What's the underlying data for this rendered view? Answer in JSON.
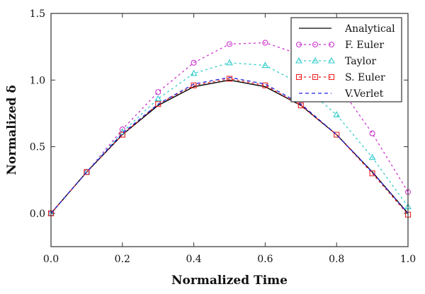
{
  "chart_data": {
    "type": "line",
    "title": "",
    "xlabel": "Normalized Time",
    "ylabel": "Normalized δ",
    "xlim": [
      0,
      1
    ],
    "ylim": [
      -0.25,
      1.5
    ],
    "xticks": [
      0.0,
      0.2,
      0.4,
      0.6,
      0.8,
      1.0
    ],
    "xtick_labels": [
      "0.0",
      "0.2",
      "0.4",
      "0.6",
      "0.8",
      "1.0"
    ],
    "yticks": [
      0.0,
      0.5,
      1.0,
      1.5
    ],
    "ytick_labels": [
      "0.0",
      "0.5",
      "1.0",
      "1.5"
    ],
    "grid": false,
    "legend_position": "top-right",
    "x": [
      0,
      0.1,
      0.2,
      0.3,
      0.4,
      0.5,
      0.6,
      0.7,
      0.8,
      0.9,
      1.0
    ],
    "series": [
      {
        "name": "Analytical",
        "color": "#000000",
        "style": "solid",
        "marker": "none",
        "values": [
          0,
          0.31,
          0.59,
          0.81,
          0.95,
          1.0,
          0.95,
          0.81,
          0.59,
          0.31,
          0
        ]
      },
      {
        "name": "F. Euler",
        "color": "#cc33cc",
        "style": "dashed",
        "marker": "circle",
        "values": [
          0,
          0.31,
          0.63,
          0.91,
          1.13,
          1.27,
          1.28,
          1.19,
          0.98,
          0.6,
          0.16
        ]
      },
      {
        "name": "Taylor",
        "color": "#33cccc",
        "style": "dashed",
        "marker": "triangle",
        "values": [
          0,
          0.31,
          0.61,
          0.86,
          1.05,
          1.13,
          1.11,
          0.97,
          0.74,
          0.42,
          0.05
        ]
      },
      {
        "name": "S. Euler",
        "color": "#ee2222",
        "style": "dashed",
        "marker": "square",
        "values": [
          0,
          0.31,
          0.59,
          0.82,
          0.96,
          1.01,
          0.96,
          0.81,
          0.59,
          0.3,
          -0.01
        ]
      },
      {
        "name": "V.Verlet",
        "color": "#2222dd",
        "style": "dashed",
        "marker": "none",
        "values": [
          0,
          0.31,
          0.6,
          0.82,
          0.97,
          1.02,
          0.97,
          0.82,
          0.59,
          0.31,
          0
        ]
      }
    ]
  }
}
